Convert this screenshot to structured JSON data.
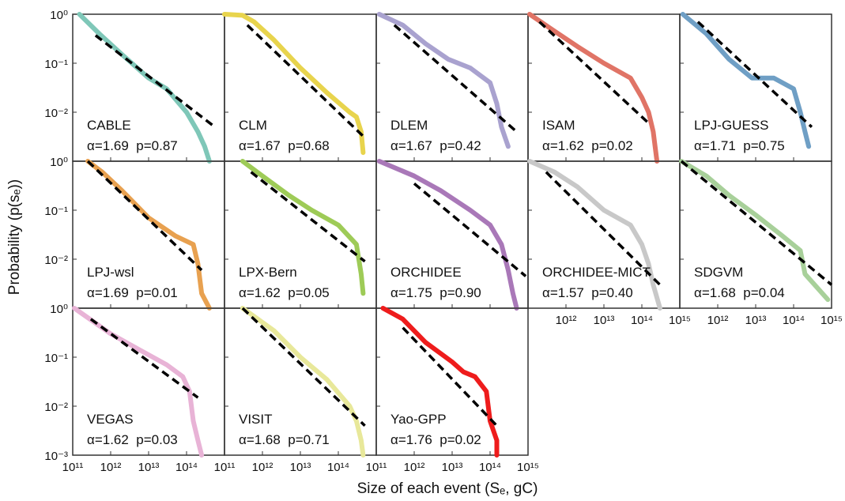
{
  "xlabel": "Size of each event (Sₑ, gC)",
  "ylabel": "Probability (p(sₑ))",
  "chart_data": [
    {
      "type": "scatter",
      "title": "CABLE",
      "annotation": "α=1.69  p=0.87",
      "color": "#7fc7b8",
      "log_x": true,
      "log_y": true,
      "xlim": [
        100000000000.0,
        1000000000000000.0
      ],
      "ylim": [
        0.001,
        1
      ],
      "xticks": [
        100000000000.0,
        1000000000000.0,
        10000000000000.0,
        100000000000000.0,
        1000000000000000.0
      ],
      "yticks": [
        {
          "value": 1,
          "label": "10⁰"
        },
        {
          "value": 0.1,
          "label": "10⁻¹"
        },
        {
          "value": 0.01,
          "label": "10⁻²"
        },
        0.001
      ],
      "x": [
        150000000000.0,
        500000000000.0,
        2000000000000.0,
        10000000000000.0,
        30000000000000.0,
        100000000000000.0,
        200000000000000.0,
        300000000000000.0,
        400000000000000.0
      ],
      "values": [
        1,
        0.4,
        0.15,
        0.05,
        0.03,
        0.01,
        0.004,
        0.002,
        0.001
      ],
      "fit": {
        "x": [
          400000000000.0,
          560000000000000.0
        ],
        "values": [
          0.37,
          0.005
        ]
      }
    },
    {
      "type": "scatter",
      "title": "CLM",
      "annotation": "α=1.67  p=0.68",
      "color": "#e8d44d",
      "log_x": true,
      "log_y": true,
      "xlim": [
        100000000000.0,
        1000000000000000.0
      ],
      "ylim": [
        0.001,
        1
      ],
      "xticks": [
        100000000000.0,
        1000000000000.0,
        10000000000000.0,
        100000000000000.0,
        1000000000000000.0
      ],
      "yticks": [
        1,
        0.1,
        0.01,
        0.001
      ],
      "x": [
        100000000000.0,
        300000000000.0,
        600000000000.0,
        2000000000000.0,
        10000000000000.0,
        50000000000000.0,
        200000000000000.0,
        300000000000000.0,
        400000000000000.0,
        450000000000000.0
      ],
      "values": [
        1,
        0.95,
        0.7,
        0.3,
        0.08,
        0.025,
        0.01,
        0.008,
        0.004,
        0.0015
      ],
      "fit": {
        "x": [
          400000000000.0,
          500000000000000.0
        ],
        "values": [
          0.6,
          0.003
        ]
      }
    },
    {
      "type": "scatter",
      "title": "DLEM",
      "annotation": "α=1.67  p=0.42",
      "color": "#a9a2cf",
      "log_x": true,
      "log_y": true,
      "xlim": [
        100000000000.0,
        1000000000000000.0
      ],
      "ylim": [
        0.001,
        1
      ],
      "xticks": [
        100000000000.0,
        1000000000000.0,
        10000000000000.0,
        100000000000000.0,
        1000000000000000.0
      ],
      "yticks": [
        1,
        0.1,
        0.01,
        0.001
      ],
      "x": [
        120000000000.0,
        500000000000.0,
        2000000000000.0,
        8000000000000.0,
        30000000000000.0,
        100000000000000.0,
        150000000000000.0,
        200000000000000.0,
        300000000000000.0
      ],
      "values": [
        1,
        0.6,
        0.25,
        0.12,
        0.08,
        0.04,
        0.015,
        0.005,
        0.002
      ],
      "fit": {
        "x": [
          300000000000.0,
          500000000000000.0
        ],
        "values": [
          0.6,
          0.004
        ]
      }
    },
    {
      "type": "scatter",
      "title": "ISAM",
      "annotation": "α=1.62  p=0.02",
      "color": "#e07466",
      "log_x": true,
      "log_y": true,
      "xlim": [
        100000000000.0,
        1000000000000000.0
      ],
      "ylim": [
        0.001,
        1
      ],
      "xticks": [
        100000000000.0,
        1000000000000.0,
        10000000000000.0,
        100000000000000.0,
        1000000000000000.0
      ],
      "yticks": [
        1,
        0.1,
        0.01,
        0.001
      ],
      "x": [
        110000000000.0,
        500000000000.0,
        2000000000000.0,
        10000000000000.0,
        50000000000000.0,
        100000000000000.0,
        150000000000000.0,
        200000000000000.0,
        250000000000000.0
      ],
      "values": [
        1,
        0.45,
        0.22,
        0.1,
        0.05,
        0.02,
        0.01,
        0.004,
        0.001
      ],
      "fit": {
        "x": [
          200000000000.0,
          150000000000000.0
        ],
        "values": [
          0.7,
          0.006
        ]
      }
    },
    {
      "type": "scatter",
      "title": "LPJ-GUESS",
      "annotation": "α=1.71  p=0.75",
      "color": "#6f9fc5",
      "log_x": true,
      "log_y": true,
      "xlim": [
        100000000000.0,
        1000000000000000.0
      ],
      "ylim": [
        0.001,
        1
      ],
      "xticks": [
        100000000000.0,
        1000000000000.0,
        10000000000000.0,
        100000000000000.0,
        1000000000000000.0
      ],
      "yticks": [
        1,
        0.1,
        0.01,
        0.001
      ],
      "x": [
        120000000000.0,
        500000000000.0,
        2000000000000.0,
        8000000000000.0,
        30000000000000.0,
        100000000000000.0,
        150000000000000.0,
        200000000000000.0,
        250000000000000.0
      ],
      "values": [
        1,
        0.4,
        0.12,
        0.05,
        0.05,
        0.03,
        0.01,
        0.004,
        0.002
      ],
      "fit": {
        "x": [
          300000000000.0,
          300000000000000.0
        ],
        "values": [
          0.7,
          0.005
        ]
      }
    },
    {
      "type": "scatter",
      "title": "LPJ-wsl",
      "annotation": "α=1.69  p=0.01",
      "color": "#e8a150",
      "log_x": true,
      "log_y": true,
      "xlim": [
        100000000000.0,
        1000000000000000.0
      ],
      "ylim": [
        0.001,
        1
      ],
      "xticks": [
        100000000000.0,
        1000000000000.0,
        10000000000000.0,
        100000000000000.0,
        1000000000000000.0
      ],
      "yticks": [
        {
          "value": 1,
          "label": "10⁰"
        },
        {
          "value": 0.1,
          "label": "10⁻¹"
        },
        {
          "value": 0.01,
          "label": "10⁻²"
        },
        0.001
      ],
      "x": [
        250000000000.0,
        600000000000.0,
        2000000000000.0,
        10000000000000.0,
        50000000000000.0,
        150000000000000.0,
        200000000000000.0,
        250000000000000.0,
        400000000000000.0
      ],
      "values": [
        1,
        0.6,
        0.25,
        0.07,
        0.03,
        0.02,
        0.008,
        0.002,
        0.001
      ],
      "fit": {
        "x": [
          250000000000.0,
          250000000000000.0
        ],
        "values": [
          1,
          0.006
        ]
      }
    },
    {
      "type": "scatter",
      "title": "LPX-Bern",
      "annotation": "α=1.62  p=0.05",
      "color": "#9ecb57",
      "log_x": true,
      "log_y": true,
      "xlim": [
        100000000000.0,
        1000000000000000.0
      ],
      "ylim": [
        0.001,
        1
      ],
      "xticks": [
        100000000000.0,
        1000000000000.0,
        10000000000000.0,
        100000000000000.0,
        1000000000000000.0
      ],
      "yticks": [
        1,
        0.1,
        0.01,
        0.001
      ],
      "x": [
        300000000000.0,
        1000000000000.0,
        5000000000000.0,
        20000000000000.0,
        100000000000000.0,
        300000000000000.0,
        400000000000000.0,
        450000000000000.0
      ],
      "values": [
        1,
        0.5,
        0.2,
        0.1,
        0.05,
        0.02,
        0.005,
        0.002
      ],
      "fit": {
        "x": [
          500000000000.0,
          500000000000000.0
        ],
        "values": [
          0.6,
          0.009
        ]
      }
    },
    {
      "type": "scatter",
      "title": "ORCHIDEE",
      "annotation": "α=1.75  p=0.90",
      "color": "#a978b8",
      "log_x": true,
      "log_y": true,
      "xlim": [
        100000000000.0,
        1000000000000000.0
      ],
      "ylim": [
        0.001,
        1
      ],
      "xticks": [
        100000000000.0,
        1000000000000.0,
        10000000000000.0,
        100000000000000.0,
        1000000000000000.0
      ],
      "yticks": [
        1,
        0.1,
        0.01,
        0.001
      ],
      "x": [
        120000000000.0,
        1000000000000.0,
        5000000000000.0,
        30000000000000.0,
        100000000000000.0,
        200000000000000.0,
        300000000000000.0,
        400000000000000.0,
        500000000000000.0
      ],
      "values": [
        1,
        0.5,
        0.25,
        0.1,
        0.05,
        0.02,
        0.006,
        0.002,
        0.001
      ],
      "fit": {
        "x": [
          1000000000000.0,
          870000000000000.0
        ],
        "values": [
          0.35,
          0.0045
        ]
      }
    },
    {
      "type": "scatter",
      "title": "ORCHIDEE-MICT",
      "annotation": "α=1.57  p=0.40",
      "color": "#c8c8c8",
      "log_x": true,
      "log_y": true,
      "xlim": [
        100000000000.0,
        1000000000000000.0
      ],
      "ylim": [
        0.001,
        1
      ],
      "xticks": [
        100000000000.0,
        {
          "value": 1000000000000.0,
          "label": "10¹²"
        },
        {
          "value": 10000000000000.0,
          "label": "10¹³"
        },
        {
          "value": 100000000000000.0,
          "label": "10¹⁴"
        },
        {
          "value": 1000000000000000.0,
          "label": "10¹⁵"
        }
      ],
      "yticks": [
        1,
        0.1,
        0.01,
        0.001
      ],
      "x": [
        110000000000.0,
        500000000000.0,
        2000000000000.0,
        10000000000000.0,
        50000000000000.0,
        100000000000000.0,
        150000000000000.0,
        200000000000000.0,
        300000000000000.0
      ],
      "values": [
        1,
        0.6,
        0.3,
        0.1,
        0.05,
        0.02,
        0.008,
        0.003,
        0.001
      ],
      "fit": {
        "x": [
          300000000000.0,
          300000000000000.0
        ],
        "values": [
          0.6,
          0.003
        ]
      }
    },
    {
      "type": "scatter",
      "title": "SDGVM",
      "annotation": "α=1.68  p=0.04",
      "color": "#a8d09a",
      "log_x": true,
      "log_y": true,
      "xlim": [
        100000000000.0,
        1000000000000000.0
      ],
      "ylim": [
        0.001,
        1
      ],
      "xticks": [
        100000000000.0,
        {
          "value": 1000000000000.0,
          "label": "10¹²"
        },
        {
          "value": 10000000000000.0,
          "label": "10¹³"
        },
        {
          "value": 100000000000000.0,
          "label": "10¹⁴"
        },
        {
          "value": 1000000000000000.0,
          "label": "10¹⁵"
        }
      ],
      "yticks": [
        1,
        0.1,
        0.01,
        0.001
      ],
      "x": [
        110000000000.0,
        500000000000.0,
        2000000000000.0,
        10000000000000.0,
        50000000000000.0,
        150000000000000.0,
        200000000000000.0,
        800000000000000.0
      ],
      "values": [
        1,
        0.5,
        0.2,
        0.08,
        0.03,
        0.015,
        0.005,
        0.0015
      ],
      "fit": {
        "x": [
          110000000000.0,
          1000000000000000.0
        ],
        "values": [
          1,
          0.003
        ]
      }
    },
    {
      "type": "scatter",
      "title": "VEGAS",
      "annotation": "α=1.62  p=0.03",
      "color": "#e8b3d6",
      "log_x": true,
      "log_y": true,
      "xlim": [
        100000000000.0,
        1000000000000000.0
      ],
      "ylim": [
        0.001,
        1
      ],
      "xticks": [
        {
          "value": 100000000000.0,
          "label": "10¹¹"
        },
        {
          "value": 1000000000000.0,
          "label": "10¹²"
        },
        {
          "value": 10000000000000.0,
          "label": "10¹³"
        },
        {
          "value": 100000000000000.0,
          "label": "10¹⁴"
        },
        1000000000000000.0
      ],
      "yticks": [
        {
          "value": 1,
          "label": "10⁰"
        },
        {
          "value": 0.1,
          "label": "10⁻¹"
        },
        {
          "value": 0.01,
          "label": "10⁻²"
        },
        {
          "value": 0.001,
          "label": "10⁻³"
        }
      ],
      "x": [
        110000000000.0,
        1000000000000.0,
        5000000000000.0,
        30000000000000.0,
        80000000000000.0,
        120000000000000.0,
        150000000000000.0,
        200000000000000.0,
        250000000000000.0
      ],
      "values": [
        1,
        0.3,
        0.15,
        0.07,
        0.04,
        0.02,
        0.005,
        0.002,
        0.001
      ],
      "fit": {
        "x": [
          300000000000.0,
          200000000000000.0
        ],
        "values": [
          0.6,
          0.015
        ]
      }
    },
    {
      "type": "scatter",
      "title": "VISIT",
      "annotation": "α=1.68  p=0.71",
      "color": "#e8e89a",
      "log_x": true,
      "log_y": true,
      "xlim": [
        100000000000.0,
        1000000000000000.0
      ],
      "ylim": [
        0.001,
        1
      ],
      "xticks": [
        {
          "value": 100000000000.0,
          "label": "10¹¹"
        },
        {
          "value": 1000000000000.0,
          "label": "10¹²"
        },
        {
          "value": 10000000000000.0,
          "label": "10¹³"
        },
        {
          "value": 100000000000000.0,
          "label": "10¹⁴"
        },
        1000000000000000.0
      ],
      "yticks": [
        1,
        0.1,
        0.01,
        0.001
      ],
      "x": [
        300000000000.0,
        2000000000000.0,
        10000000000000.0,
        50000000000000.0,
        200000000000000.0,
        300000000000000.0,
        400000000000000.0,
        450000000000000.0
      ],
      "values": [
        1,
        0.35,
        0.1,
        0.035,
        0.01,
        0.005,
        0.002,
        0.001
      ],
      "fit": {
        "x": [
          300000000000.0,
          500000000000000.0
        ],
        "values": [
          1,
          0.004
        ]
      }
    },
    {
      "type": "scatter",
      "title": "Yao-GPP",
      "annotation": "α=1.76  p=0.02",
      "color": "#ee1c1c",
      "log_x": true,
      "log_y": true,
      "xlim": [
        100000000000.0,
        1000000000000000.0
      ],
      "ylim": [
        0.001,
        1
      ],
      "xticks": [
        {
          "value": 100000000000.0,
          "label": "10¹¹"
        },
        {
          "value": 1000000000000.0,
          "label": "10¹²"
        },
        {
          "value": 10000000000000.0,
          "label": "10¹³"
        },
        {
          "value": 100000000000000.0,
          "label": "10¹⁴"
        },
        {
          "value": 1000000000000000.0,
          "label": "10¹⁵"
        }
      ],
      "yticks": [
        1,
        0.1,
        0.01,
        0.001
      ],
      "x": [
        150000000000.0,
        500000000000.0,
        2000000000000.0,
        10000000000000.0,
        20000000000000.0,
        40000000000000.0,
        80000000000000.0,
        100000000000000.0,
        150000000000000.0,
        150000000000000.0
      ],
      "values": [
        1,
        0.6,
        0.2,
        0.08,
        0.05,
        0.04,
        0.02,
        0.005,
        0.002,
        0.001
      ],
      "fit": {
        "x": [
          500000000000.0,
          150000000000000.0
        ],
        "values": [
          0.4,
          0.004
        ]
      }
    }
  ]
}
